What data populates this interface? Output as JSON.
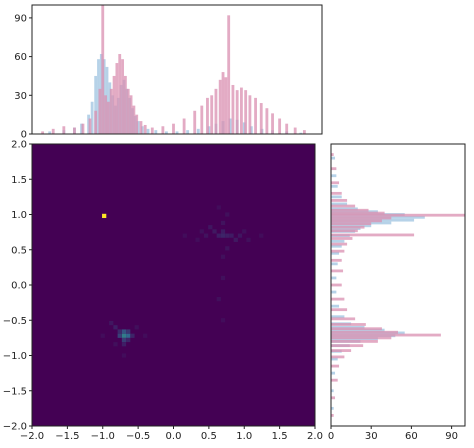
{
  "colors": {
    "background": "#ffffff",
    "heatmap_low": "#440154",
    "heatmap_mid": "#31688e",
    "heatmap_high": "#35b779",
    "heatmap_max": "#fde725",
    "hist_blue": "#9ec3e0",
    "hist_pink": "#d98fb0"
  },
  "chart_data": [
    {
      "type": "heatmap",
      "panel": "joint",
      "xlim": [
        -2.0,
        2.0
      ],
      "ylim": [
        -2.0,
        2.0
      ],
      "grid": false,
      "x_ticks": [
        "−2.0",
        "−1.5",
        "−1.0",
        "−0.5",
        "0.0",
        "0.5",
        "1.0",
        "1.5",
        "2.0"
      ],
      "y_ticks": [
        "2.0",
        "1.5",
        "1.0",
        "0.5",
        "0.0",
        "−0.5",
        "−1.0",
        "−1.5",
        "−2.0"
      ],
      "hot_cells": [
        {
          "x": -0.98,
          "y": 0.98,
          "level": 1.0
        },
        {
          "x": -0.7,
          "y": -0.72,
          "level": 0.45
        },
        {
          "x": -0.64,
          "y": -0.72,
          "level": 0.35
        },
        {
          "x": -0.7,
          "y": -0.66,
          "level": 0.28
        },
        {
          "x": -0.76,
          "y": -0.72,
          "level": 0.22
        },
        {
          "x": -0.7,
          "y": -0.78,
          "level": 0.2
        },
        {
          "x": -0.64,
          "y": -0.66,
          "level": 0.18
        },
        {
          "x": -0.76,
          "y": -0.66,
          "level": 0.14
        },
        {
          "x": -0.82,
          "y": -0.6,
          "level": 0.1
        },
        {
          "x": -0.58,
          "y": -0.72,
          "level": 0.12
        },
        {
          "x": -0.64,
          "y": -0.78,
          "level": 0.12
        },
        {
          "x": -0.7,
          "y": -0.84,
          "level": 0.1
        },
        {
          "x": -0.88,
          "y": -0.54,
          "level": 0.07
        },
        {
          "x": 0.7,
          "y": 0.7,
          "level": 0.12
        },
        {
          "x": 0.64,
          "y": 0.7,
          "level": 0.1
        },
        {
          "x": 0.76,
          "y": 0.7,
          "level": 0.1
        },
        {
          "x": 0.7,
          "y": 0.76,
          "level": 0.09
        },
        {
          "x": 0.82,
          "y": 0.7,
          "level": 0.09
        },
        {
          "x": 0.58,
          "y": 0.76,
          "level": 0.08
        },
        {
          "x": 0.88,
          "y": 0.64,
          "level": 0.08
        },
        {
          "x": 0.52,
          "y": 0.82,
          "level": 0.07
        },
        {
          "x": 0.94,
          "y": 0.7,
          "level": 0.07
        },
        {
          "x": 0.7,
          "y": 0.88,
          "level": 0.06
        },
        {
          "x": 0.46,
          "y": 0.7,
          "level": 0.06
        },
        {
          "x": 0.76,
          "y": 0.52,
          "level": 0.06
        },
        {
          "x": 0.7,
          "y": 0.4,
          "level": 0.05
        },
        {
          "x": 0.7,
          "y": 0.1,
          "level": 0.05
        },
        {
          "x": 0.64,
          "y": -0.2,
          "level": 0.05
        },
        {
          "x": 1.0,
          "y": 0.76,
          "level": 0.05
        },
        {
          "x": 1.06,
          "y": 0.64,
          "level": 0.05
        },
        {
          "x": 0.4,
          "y": 0.76,
          "level": 0.05
        },
        {
          "x": 1.24,
          "y": 0.7,
          "level": 0.04
        },
        {
          "x": 0.34,
          "y": 0.64,
          "level": 0.04
        },
        {
          "x": 0.76,
          "y": 1.0,
          "level": 0.05
        },
        {
          "x": 0.64,
          "y": 1.1,
          "level": 0.04
        },
        {
          "x": 0.16,
          "y": 0.7,
          "level": 0.04
        },
        {
          "x": 0.7,
          "y": -0.5,
          "level": 0.04
        },
        {
          "x": -0.4,
          "y": -0.72,
          "level": 0.04
        },
        {
          "x": -0.7,
          "y": -1.0,
          "level": 0.04
        },
        {
          "x": -1.0,
          "y": -0.72,
          "level": 0.04
        },
        {
          "x": -0.52,
          "y": -0.6,
          "level": 0.05
        },
        {
          "x": -0.82,
          "y": -0.84,
          "level": 0.05
        }
      ]
    },
    {
      "type": "bar",
      "panel": "top-marginal",
      "xlim": [
        -2.0,
        2.0
      ],
      "ylim": [
        0,
        100
      ],
      "y_ticks": [
        0,
        30,
        60,
        90
      ],
      "series": [
        {
          "key": "blue",
          "points": [
            [
              -1.75,
              2
            ],
            [
              -1.55,
              3
            ],
            [
              -1.4,
              5
            ],
            [
              -1.3,
              8
            ],
            [
              -1.2,
              15
            ],
            [
              -1.15,
              25
            ],
            [
              -1.1,
              45
            ],
            [
              -1.06,
              58
            ],
            [
              -1.02,
              62
            ],
            [
              -0.98,
              58
            ],
            [
              -0.94,
              52
            ],
            [
              -0.9,
              40
            ],
            [
              -0.86,
              30
            ],
            [
              -0.82,
              22
            ],
            [
              -0.78,
              28
            ],
            [
              -0.74,
              38
            ],
            [
              -0.7,
              42
            ],
            [
              -0.66,
              35
            ],
            [
              -0.62,
              28
            ],
            [
              -0.58,
              20
            ],
            [
              -0.54,
              14
            ],
            [
              -0.5,
              10
            ],
            [
              -0.44,
              6
            ],
            [
              -0.36,
              4
            ],
            [
              -0.25,
              3
            ],
            [
              -0.1,
              2
            ],
            [
              0.05,
              2
            ],
            [
              0.2,
              3
            ],
            [
              0.35,
              4
            ],
            [
              0.5,
              6
            ],
            [
              0.6,
              8
            ],
            [
              0.7,
              10
            ],
            [
              0.8,
              12
            ],
            [
              0.9,
              11
            ],
            [
              1.0,
              9
            ],
            [
              1.1,
              6
            ],
            [
              1.25,
              4
            ],
            [
              1.4,
              3
            ],
            [
              1.6,
              2
            ],
            [
              1.8,
              1
            ]
          ]
        },
        {
          "key": "pink",
          "points": [
            [
              -1.85,
              2
            ],
            [
              -1.7,
              4
            ],
            [
              -1.55,
              6
            ],
            [
              -1.4,
              5
            ],
            [
              -1.28,
              8
            ],
            [
              -1.18,
              12
            ],
            [
              -1.1,
              18
            ],
            [
              -1.04,
              35
            ],
            [
              -1.0,
              100
            ],
            [
              -0.96,
              30
            ],
            [
              -0.92,
              25
            ],
            [
              -0.88,
              35
            ],
            [
              -0.84,
              45
            ],
            [
              -0.8,
              55
            ],
            [
              -0.76,
              62
            ],
            [
              -0.72,
              58
            ],
            [
              -0.68,
              45
            ],
            [
              -0.64,
              35
            ],
            [
              -0.6,
              30
            ],
            [
              -0.56,
              22
            ],
            [
              -0.52,
              15
            ],
            [
              -0.46,
              10
            ],
            [
              -0.4,
              7
            ],
            [
              -0.3,
              5
            ],
            [
              -0.15,
              6
            ],
            [
              0.0,
              8
            ],
            [
              0.15,
              12
            ],
            [
              0.3,
              18
            ],
            [
              0.4,
              22
            ],
            [
              0.48,
              28
            ],
            [
              0.54,
              30
            ],
            [
              0.6,
              35
            ],
            [
              0.66,
              42
            ],
            [
              0.7,
              48
            ],
            [
              0.74,
              44
            ],
            [
              0.78,
              92
            ],
            [
              0.84,
              38
            ],
            [
              0.9,
              34
            ],
            [
              0.96,
              36
            ],
            [
              1.02,
              34
            ],
            [
              1.08,
              30
            ],
            [
              1.16,
              28
            ],
            [
              1.24,
              24
            ],
            [
              1.32,
              20
            ],
            [
              1.4,
              16
            ],
            [
              1.5,
              12
            ],
            [
              1.6,
              8
            ],
            [
              1.72,
              5
            ],
            [
              1.85,
              3
            ]
          ]
        }
      ]
    },
    {
      "type": "bar",
      "panel": "right-marginal",
      "orientation": "horizontal",
      "ylim": [
        -2.0,
        2.0
      ],
      "xlim": [
        0,
        100
      ],
      "x_ticks": [
        0,
        30,
        60,
        90
      ],
      "series": [
        {
          "key": "blue",
          "points": [
            [
              1.8,
              3
            ],
            [
              1.55,
              4
            ],
            [
              1.4,
              5
            ],
            [
              1.25,
              8
            ],
            [
              1.15,
              12
            ],
            [
              1.08,
              20
            ],
            [
              1.04,
              35
            ],
            [
              1.0,
              55
            ],
            [
              0.96,
              70
            ],
            [
              0.92,
              62
            ],
            [
              0.88,
              45
            ],
            [
              0.84,
              30
            ],
            [
              0.8,
              22
            ],
            [
              0.76,
              18
            ],
            [
              0.7,
              14
            ],
            [
              0.62,
              10
            ],
            [
              0.55,
              8
            ],
            [
              0.45,
              6
            ],
            [
              0.3,
              5
            ],
            [
              0.1,
              4
            ],
            [
              -0.1,
              4
            ],
            [
              -0.3,
              6
            ],
            [
              -0.45,
              10
            ],
            [
              -0.55,
              15
            ],
            [
              -0.6,
              25
            ],
            [
              -0.64,
              40
            ],
            [
              -0.68,
              55
            ],
            [
              -0.72,
              48
            ],
            [
              -0.76,
              35
            ],
            [
              -0.8,
              22
            ],
            [
              -0.86,
              14
            ],
            [
              -0.94,
              8
            ],
            [
              -1.05,
              5
            ],
            [
              -1.25,
              3
            ],
            [
              -1.5,
              2
            ],
            [
              -1.75,
              2
            ]
          ]
        },
        {
          "key": "pink",
          "points": [
            [
              1.85,
              2
            ],
            [
              1.65,
              4
            ],
            [
              1.45,
              6
            ],
            [
              1.3,
              8
            ],
            [
              1.2,
              12
            ],
            [
              1.12,
              18
            ],
            [
              1.06,
              28
            ],
            [
              1.02,
              40
            ],
            [
              0.99,
              100
            ],
            [
              0.95,
              45
            ],
            [
              0.91,
              38
            ],
            [
              0.87,
              30
            ],
            [
              0.82,
              25
            ],
            [
              0.77,
              20
            ],
            [
              0.71,
              62
            ],
            [
              0.66,
              16
            ],
            [
              0.58,
              12
            ],
            [
              0.48,
              10
            ],
            [
              0.35,
              8
            ],
            [
              0.2,
              9
            ],
            [
              0.0,
              8
            ],
            [
              -0.2,
              10
            ],
            [
              -0.35,
              12
            ],
            [
              -0.48,
              18
            ],
            [
              -0.56,
              26
            ],
            [
              -0.62,
              38
            ],
            [
              -0.67,
              50
            ],
            [
              -0.71,
              82
            ],
            [
              -0.75,
              45
            ],
            [
              -0.8,
              35
            ],
            [
              -0.86,
              24
            ],
            [
              -0.93,
              15
            ],
            [
              -1.02,
              10
            ],
            [
              -1.15,
              6
            ],
            [
              -1.35,
              5
            ],
            [
              -1.6,
              3
            ],
            [
              -1.85,
              2
            ]
          ]
        }
      ]
    }
  ]
}
